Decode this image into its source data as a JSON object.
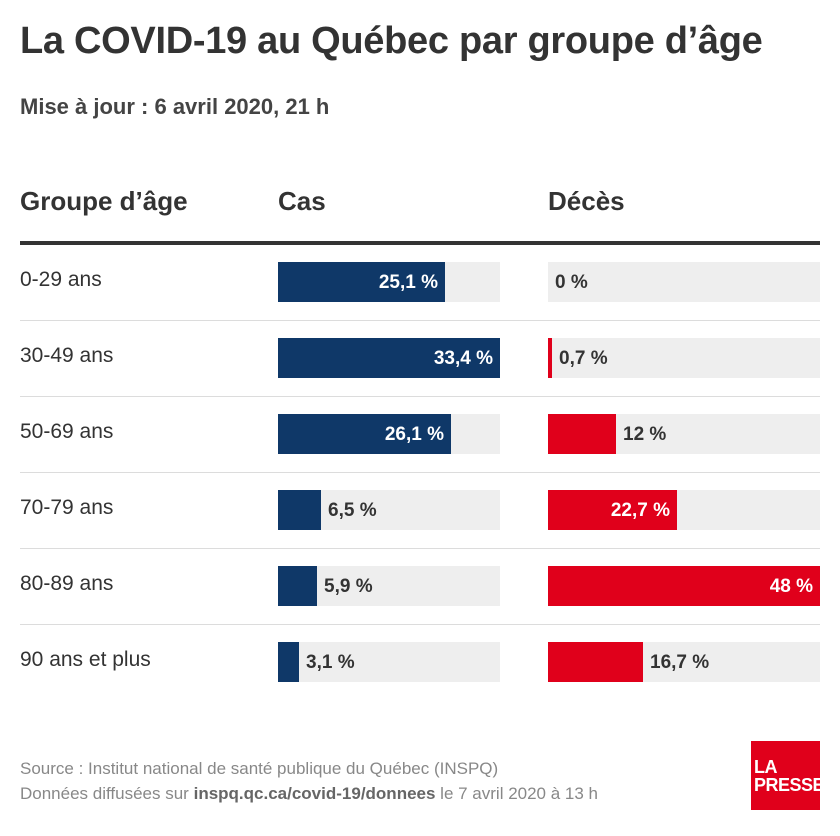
{
  "title": "La COVID-19 au Québec par groupe d’âge",
  "subtitle": "Mise à jour : 6 avril 2020, 21 h",
  "colors": {
    "cas": "#0f3868",
    "deces": "#e0001b",
    "track": "#eeeeee"
  },
  "chart_data": {
    "type": "bar",
    "orientation": "horizontal",
    "headers": {
      "group": "Groupe d’âge",
      "cas": "Cas",
      "deces": "Décès"
    },
    "categories": [
      "0-29 ans",
      "30-49 ans",
      "50-69 ans",
      "70-79 ans",
      "80-89 ans",
      "90 ans et plus"
    ],
    "series": [
      {
        "key": "cas",
        "values": [
          25.1,
          33.4,
          26.1,
          6.5,
          5.9,
          3.1
        ],
        "labels": [
          "25,1 %",
          "33,4 %",
          "26,1 %",
          "6,5 %",
          "5,9 %",
          "3,1 %"
        ],
        "max": 33.4
      },
      {
        "key": "deces",
        "values": [
          0,
          0.7,
          12,
          22.7,
          48,
          16.7
        ],
        "labels": [
          "0 %",
          "0,7 %",
          "12 %",
          "22,7 %",
          "48 %",
          "16,7 %"
        ],
        "max": 48
      }
    ]
  },
  "footer": {
    "source": "Source : Institut national de santé publique du Québec (INSPQ)",
    "data_prefix": "Données diffusées sur",
    "data_link": "inspq.qc.ca/covid-19/donnees",
    "data_suffix": "le 7 avril 2020 à 13 h"
  },
  "logo": {
    "line1": "LA",
    "line2": "PRESSE"
  }
}
